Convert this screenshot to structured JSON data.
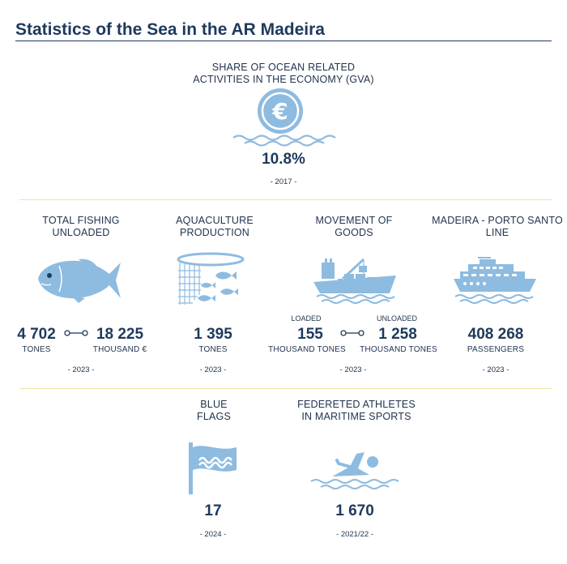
{
  "title": "Statistics of the Sea in the AR Madeira",
  "gva": {
    "label_line1": "SHARE OF OCEAN RELATED",
    "label_line2": "ACTIVITIES IN THE ECONOMY (GVA)",
    "icon_symbol": "€",
    "value": "10.8%",
    "year": "- 2017 -"
  },
  "fishing": {
    "label_line1": "TOTAL FISHING",
    "label_line2": "UNLOADED",
    "value1": "4 702",
    "unit1": "TONES",
    "value2": "18 225",
    "unit2": "THOUSAND €",
    "year": "- 2023 -"
  },
  "aquaculture": {
    "label_line1": "AQUACULTURE",
    "label_line2": "PRODUCTION",
    "value": "1 395",
    "unit": "TONES",
    "year": "- 2023 -"
  },
  "goods": {
    "label_line1": "MOVEMENT OF",
    "label_line2": "GOODS",
    "loaded_label": "LOADED",
    "loaded_value": "155",
    "loaded_unit": "THOUSAND TONES",
    "unloaded_label": "UNLOADED",
    "unloaded_value": "1 258",
    "unloaded_unit": "THOUSAND TONES",
    "year": "- 2023 -"
  },
  "ferry": {
    "label_line1": "MADEIRA - PORTO SANTO",
    "label_line2": "LINE",
    "value": "408 268",
    "unit": "PASSENGERS",
    "year": "- 2023 -"
  },
  "flags": {
    "label_line1": "BLUE",
    "label_line2": "FLAGS",
    "value": "17",
    "year": "- 2024 -"
  },
  "athletes": {
    "label_line1": "FEDERETED ATHLETES",
    "label_line2": "IN MARITIME SPORTS",
    "value": "1 670",
    "year": "- 2021/22 -"
  },
  "colors": {
    "icon_blue": "#8ebbe0",
    "dark_navy": "#1d3a5c",
    "separator": "#f1e6a4"
  },
  "icons": {
    "gva": "euro-coin-icon",
    "fishing": "fish-icon",
    "aquaculture": "fish-net-icon",
    "goods": "cargo-ship-icon",
    "ferry": "ferry-icon",
    "flags": "blue-flag-icon",
    "athletes": "swimmer-icon"
  }
}
